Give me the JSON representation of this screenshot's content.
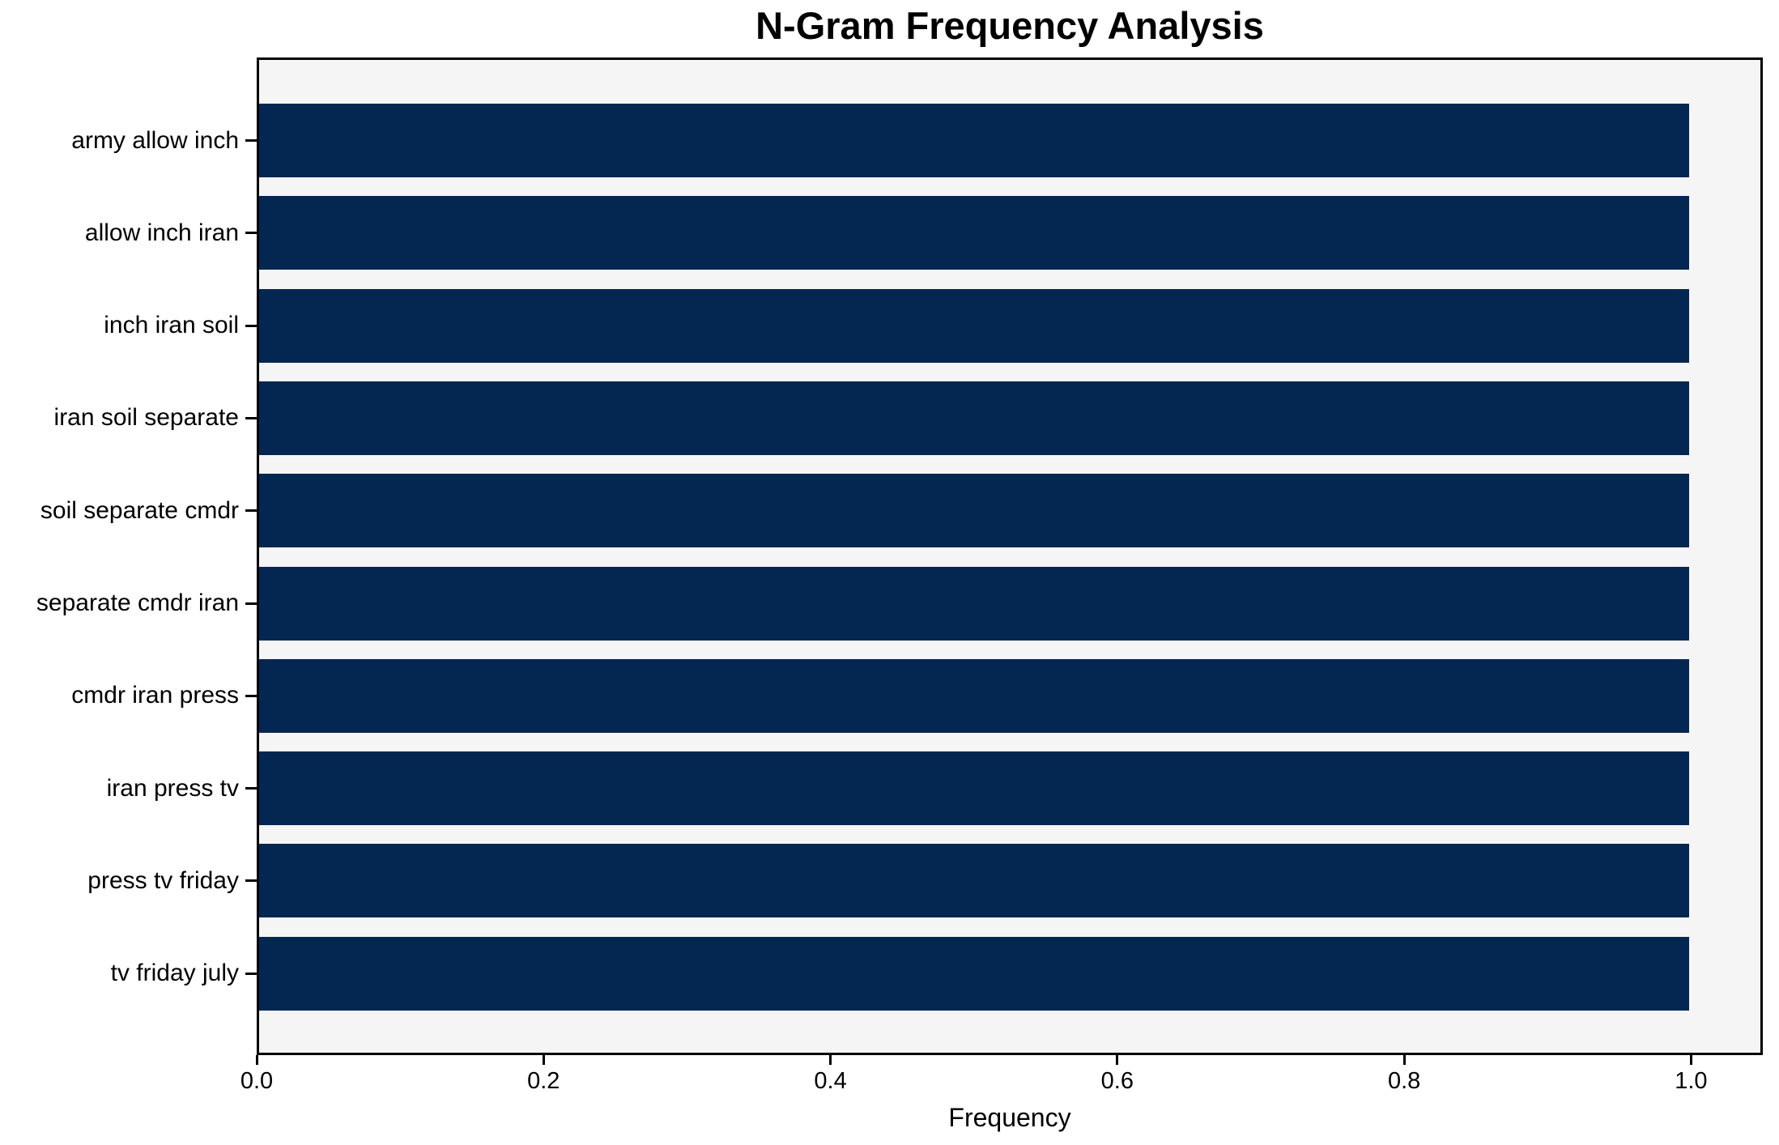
{
  "chart_data": {
    "type": "bar",
    "orientation": "horizontal",
    "title": "N-Gram Frequency Analysis",
    "xlabel": "Frequency",
    "ylabel": "",
    "categories": [
      "army allow inch",
      "allow inch iran",
      "inch iran soil",
      "iran soil separate",
      "soil separate cmdr",
      "separate cmdr iran",
      "cmdr iran press",
      "iran press tv",
      "press tv friday",
      "tv friday july"
    ],
    "values": [
      1.0,
      1.0,
      1.0,
      1.0,
      1.0,
      1.0,
      1.0,
      1.0,
      1.0,
      1.0
    ],
    "xlim": [
      0.0,
      1.05
    ],
    "x_tick_values": [
      0.0,
      0.2,
      0.4,
      0.6,
      0.8,
      1.0
    ],
    "x_tick_labels": [
      "0.0",
      "0.2",
      "0.4",
      "0.6",
      "0.8",
      "1.0"
    ],
    "grid": false,
    "legend_position": "none",
    "colors": {
      "bar": "#032750",
      "plot_background": "#f5f5f5",
      "figure_background": "#ffffff",
      "spine": "#000000",
      "text": "#000000"
    }
  }
}
